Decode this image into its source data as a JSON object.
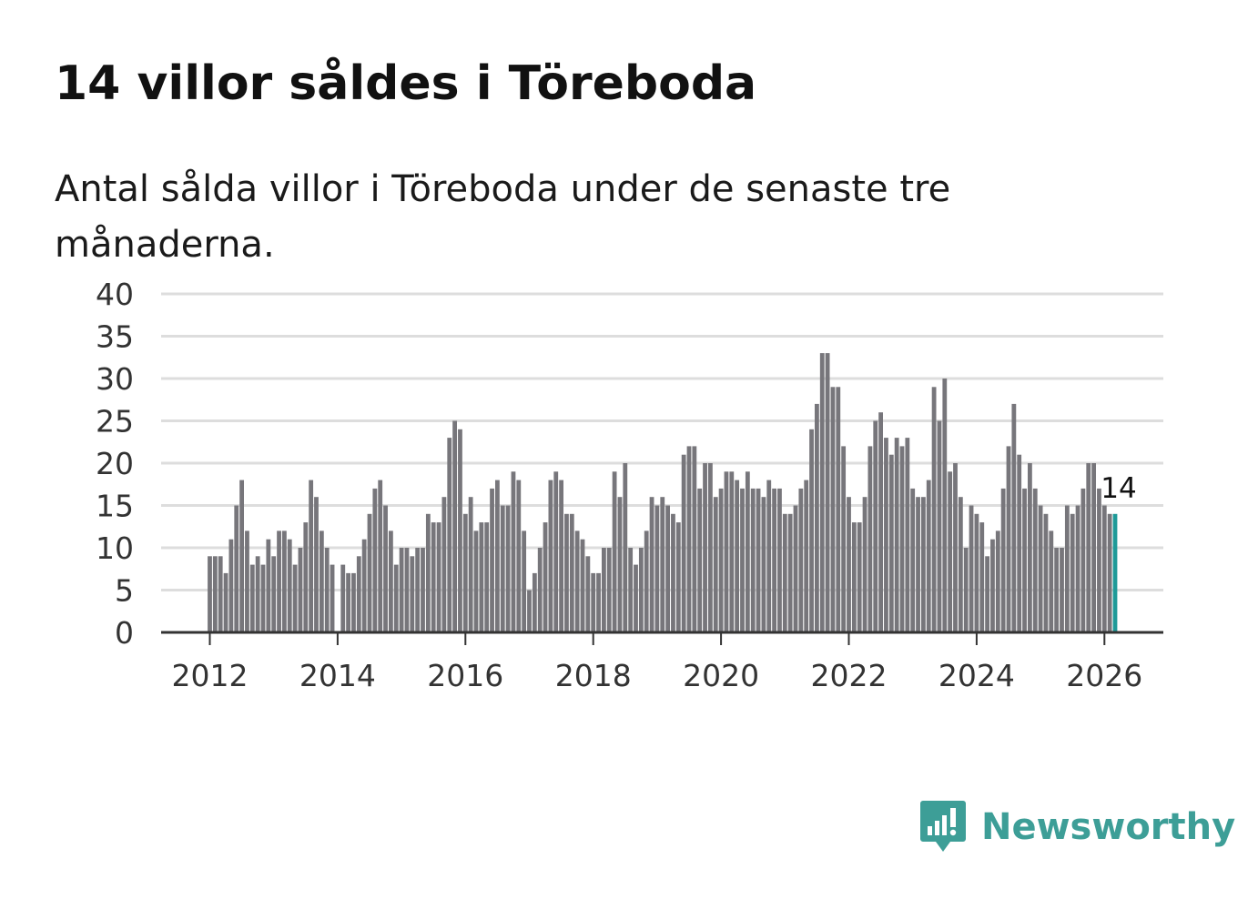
{
  "title": "14 villor såldes i Töreboda",
  "subtitle": "Antal sålda villor i Töreboda under de senaste tre månaderna.",
  "brand": {
    "name": "Newsworthy",
    "color": "#3d9e97"
  },
  "colors": {
    "bar": "#77767b",
    "highlight": "#1e9a98",
    "grid": "#dddddd",
    "axis": "#333333",
    "text": "#333333"
  },
  "chart_data": {
    "type": "bar",
    "title": "14 villor såldes i Töreboda",
    "xlabel": "",
    "ylabel": "",
    "ylim": [
      0,
      40
    ],
    "yticks": [
      0,
      5,
      10,
      15,
      20,
      25,
      30,
      35,
      40
    ],
    "xticks": [
      "2012",
      "2014",
      "2016",
      "2018",
      "2020",
      "2022",
      "2024",
      "2026"
    ],
    "start": "2012-01",
    "frequency": "monthly",
    "series": [
      {
        "name": "Antal sålda villor",
        "values": [
          9,
          9,
          9,
          7,
          11,
          15,
          18,
          12,
          8,
          9,
          8,
          11,
          9,
          12,
          12,
          11,
          8,
          10,
          13,
          18,
          16,
          12,
          10,
          8,
          0,
          8,
          7,
          7,
          9,
          11,
          14,
          17,
          18,
          15,
          12,
          8,
          10,
          10,
          9,
          10,
          10,
          14,
          13,
          13,
          16,
          23,
          25,
          24,
          14,
          16,
          12,
          13,
          13,
          17,
          18,
          15,
          15,
          19,
          18,
          12,
          5,
          7,
          10,
          13,
          18,
          19,
          18,
          14,
          14,
          12,
          11,
          9,
          7,
          7,
          10,
          10,
          19,
          16,
          20,
          10,
          8,
          10,
          12,
          16,
          15,
          16,
          15,
          14,
          13,
          21,
          22,
          22,
          17,
          20,
          20,
          16,
          17,
          19,
          19,
          18,
          17,
          19,
          17,
          17,
          16,
          18,
          17,
          17,
          14,
          14,
          15,
          17,
          18,
          24,
          27,
          33,
          33,
          29,
          29,
          22,
          16,
          13,
          13,
          16,
          22,
          25,
          26,
          23,
          21,
          23,
          22,
          23,
          17,
          16,
          16,
          18,
          29,
          25,
          30,
          19,
          20,
          16,
          10,
          15,
          14,
          13,
          9,
          11,
          12,
          17,
          22,
          27,
          21,
          17,
          20,
          17,
          15,
          14,
          12,
          10,
          10,
          15,
          14,
          15,
          17,
          20,
          20,
          17,
          15,
          14,
          14
        ]
      }
    ],
    "annotation": {
      "label": "14",
      "value": 14,
      "index": "last"
    }
  }
}
